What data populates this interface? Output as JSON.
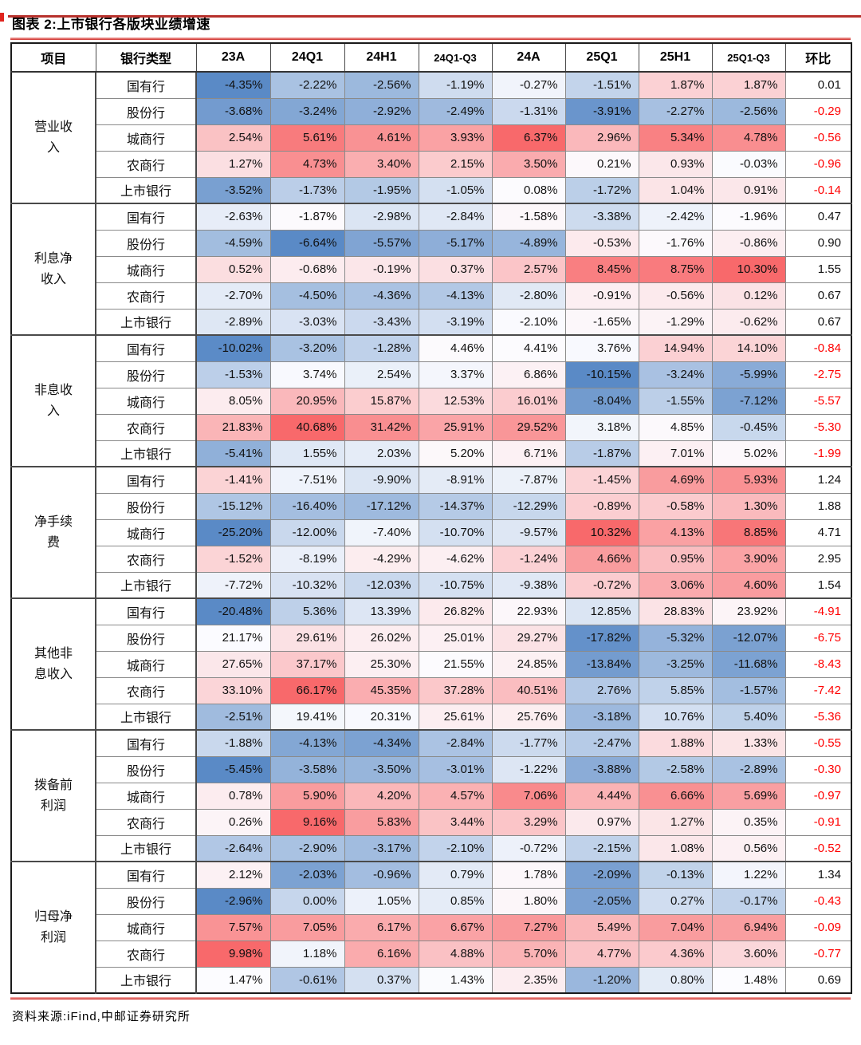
{
  "page": {
    "title": "图表 2:上市银行各版块业绩增速",
    "source": "资料来源:iFind,中邮证券研究所"
  },
  "colors": {
    "scale_min": "#5A8AC6",
    "scale_mid": "#FCFCFF",
    "scale_max": "#F8696B",
    "negative_text": "#FF0000",
    "rule_red": "#CF2E2A"
  },
  "table": {
    "columns": [
      "项目",
      "银行类型",
      "23A",
      "24Q1",
      "24H1",
      "24Q1-Q3",
      "24A",
      "25Q1",
      "25H1",
      "25Q1-Q3",
      "环比"
    ],
    "blocks": [
      {
        "item": "营业收入",
        "rows": [
          {
            "bank": "国有行",
            "values": [
              "-4.35%",
              "-2.22%",
              "-2.56%",
              "-1.19%",
              "-0.27%",
              "-1.51%",
              "1.87%",
              "1.87%"
            ],
            "qoq": "0.01"
          },
          {
            "bank": "股份行",
            "values": [
              "-3.68%",
              "-3.24%",
              "-2.92%",
              "-2.49%",
              "-1.31%",
              "-3.91%",
              "-2.27%",
              "-2.56%"
            ],
            "qoq": "-0.29"
          },
          {
            "bank": "城商行",
            "values": [
              "2.54%",
              "5.61%",
              "4.61%",
              "3.93%",
              "6.37%",
              "2.96%",
              "5.34%",
              "4.78%"
            ],
            "qoq": "-0.56"
          },
          {
            "bank": "农商行",
            "values": [
              "1.27%",
              "4.73%",
              "3.40%",
              "2.15%",
              "3.50%",
              "0.21%",
              "0.93%",
              "-0.03%"
            ],
            "qoq": "-0.96"
          },
          {
            "bank": "上市银行",
            "values": [
              "-3.52%",
              "-1.73%",
              "-1.95%",
              "-1.05%",
              "0.08%",
              "-1.72%",
              "1.04%",
              "0.91%"
            ],
            "qoq": "-0.14"
          }
        ]
      },
      {
        "item": "利息净收入",
        "rows": [
          {
            "bank": "国有行",
            "values": [
              "-2.63%",
              "-1.87%",
              "-2.98%",
              "-2.84%",
              "-1.58%",
              "-3.38%",
              "-2.42%",
              "-1.96%"
            ],
            "qoq": "0.47"
          },
          {
            "bank": "股份行",
            "values": [
              "-4.59%",
              "-6.64%",
              "-5.57%",
              "-5.17%",
              "-4.89%",
              "-0.53%",
              "-1.76%",
              "-0.86%"
            ],
            "qoq": "0.90"
          },
          {
            "bank": "城商行",
            "values": [
              "0.52%",
              "-0.68%",
              "-0.19%",
              "0.37%",
              "2.57%",
              "8.45%",
              "8.75%",
              "10.30%"
            ],
            "qoq": "1.55"
          },
          {
            "bank": "农商行",
            "values": [
              "-2.70%",
              "-4.50%",
              "-4.36%",
              "-4.13%",
              "-2.80%",
              "-0.91%",
              "-0.56%",
              "0.12%"
            ],
            "qoq": "0.67"
          },
          {
            "bank": "上市银行",
            "values": [
              "-2.89%",
              "-3.03%",
              "-3.43%",
              "-3.19%",
              "-2.10%",
              "-1.65%",
              "-1.29%",
              "-0.62%"
            ],
            "qoq": "0.67"
          }
        ]
      },
      {
        "item": "非息收入",
        "rows": [
          {
            "bank": "国有行",
            "values": [
              "-10.02%",
              "-3.20%",
              "-1.28%",
              "4.46%",
              "4.41%",
              "3.76%",
              "14.94%",
              "14.10%"
            ],
            "qoq": "-0.84"
          },
          {
            "bank": "股份行",
            "values": [
              "-1.53%",
              "3.74%",
              "2.54%",
              "3.37%",
              "6.86%",
              "-10.15%",
              "-3.24%",
              "-5.99%"
            ],
            "qoq": "-2.75"
          },
          {
            "bank": "城商行",
            "values": [
              "8.05%",
              "20.95%",
              "15.87%",
              "12.53%",
              "16.01%",
              "-8.04%",
              "-1.55%",
              "-7.12%"
            ],
            "qoq": "-5.57"
          },
          {
            "bank": "农商行",
            "values": [
              "21.83%",
              "40.68%",
              "31.42%",
              "25.91%",
              "29.52%",
              "3.18%",
              "4.85%",
              "-0.45%"
            ],
            "qoq": "-5.30"
          },
          {
            "bank": "上市银行",
            "values": [
              "-5.41%",
              "1.55%",
              "2.03%",
              "5.20%",
              "6.71%",
              "-1.87%",
              "7.01%",
              "5.02%"
            ],
            "qoq": "-1.99"
          }
        ]
      },
      {
        "item": "净手续费",
        "rows": [
          {
            "bank": "国有行",
            "values": [
              "-1.41%",
              "-7.51%",
              "-9.90%",
              "-8.91%",
              "-7.87%",
              "-1.45%",
              "4.69%",
              "5.93%"
            ],
            "qoq": "1.24"
          },
          {
            "bank": "股份行",
            "values": [
              "-15.12%",
              "-16.40%",
              "-17.12%",
              "-14.37%",
              "-12.29%",
              "-0.89%",
              "-0.58%",
              "1.30%"
            ],
            "qoq": "1.88"
          },
          {
            "bank": "城商行",
            "values": [
              "-25.20%",
              "-12.00%",
              "-7.40%",
              "-10.70%",
              "-9.57%",
              "10.32%",
              "4.13%",
              "8.85%"
            ],
            "qoq": "4.71"
          },
          {
            "bank": "农商行",
            "values": [
              "-1.52%",
              "-8.19%",
              "-4.29%",
              "-4.62%",
              "-1.24%",
              "4.66%",
              "0.95%",
              "3.90%"
            ],
            "qoq": "2.95"
          },
          {
            "bank": "上市银行",
            "values": [
              "-7.72%",
              "-10.32%",
              "-12.03%",
              "-10.75%",
              "-9.38%",
              "-0.72%",
              "3.06%",
              "4.60%"
            ],
            "qoq": "1.54"
          }
        ]
      },
      {
        "item": "其他非息收入",
        "rows": [
          {
            "bank": "国有行",
            "values": [
              "-20.48%",
              "5.36%",
              "13.39%",
              "26.82%",
              "22.93%",
              "12.85%",
              "28.83%",
              "23.92%"
            ],
            "qoq": "-4.91"
          },
          {
            "bank": "股份行",
            "values": [
              "21.17%",
              "29.61%",
              "26.02%",
              "25.01%",
              "29.27%",
              "-17.82%",
              "-5.32%",
              "-12.07%"
            ],
            "qoq": "-6.75"
          },
          {
            "bank": "城商行",
            "values": [
              "27.65%",
              "37.17%",
              "25.30%",
              "21.55%",
              "24.85%",
              "-13.84%",
              "-3.25%",
              "-11.68%"
            ],
            "qoq": "-8.43"
          },
          {
            "bank": "农商行",
            "values": [
              "33.10%",
              "66.17%",
              "45.35%",
              "37.28%",
              "40.51%",
              "2.76%",
              "5.85%",
              "-1.57%"
            ],
            "qoq": "-7.42"
          },
          {
            "bank": "上市银行",
            "values": [
              "-2.51%",
              "19.41%",
              "20.31%",
              "25.61%",
              "25.76%",
              "-3.18%",
              "10.76%",
              "5.40%"
            ],
            "qoq": "-5.36"
          }
        ]
      },
      {
        "item": "拨备前利润",
        "rows": [
          {
            "bank": "国有行",
            "values": [
              "-1.88%",
              "-4.13%",
              "-4.34%",
              "-2.84%",
              "-1.77%",
              "-2.47%",
              "1.88%",
              "1.33%"
            ],
            "qoq": "-0.55"
          },
          {
            "bank": "股份行",
            "values": [
              "-5.45%",
              "-3.58%",
              "-3.50%",
              "-3.01%",
              "-1.22%",
              "-3.88%",
              "-2.58%",
              "-2.89%"
            ],
            "qoq": "-0.30"
          },
          {
            "bank": "城商行",
            "values": [
              "0.78%",
              "5.90%",
              "4.20%",
              "4.57%",
              "7.06%",
              "4.44%",
              "6.66%",
              "5.69%"
            ],
            "qoq": "-0.97"
          },
          {
            "bank": "农商行",
            "values": [
              "0.26%",
              "9.16%",
              "5.83%",
              "3.44%",
              "3.29%",
              "0.97%",
              "1.27%",
              "0.35%"
            ],
            "qoq": "-0.91"
          },
          {
            "bank": "上市银行",
            "values": [
              "-2.64%",
              "-2.90%",
              "-3.17%",
              "-2.10%",
              "-0.72%",
              "-2.15%",
              "1.08%",
              "0.56%"
            ],
            "qoq": "-0.52"
          }
        ]
      },
      {
        "item": "归母净利润",
        "rows": [
          {
            "bank": "国有行",
            "values": [
              "2.12%",
              "-2.03%",
              "-0.96%",
              "0.79%",
              "1.78%",
              "-2.09%",
              "-0.13%",
              "1.22%"
            ],
            "qoq": "1.34"
          },
          {
            "bank": "股份行",
            "values": [
              "-2.96%",
              "0.00%",
              "1.05%",
              "0.85%",
              "1.80%",
              "-2.05%",
              "0.27%",
              "-0.17%"
            ],
            "qoq": "-0.43"
          },
          {
            "bank": "城商行",
            "values": [
              "7.57%",
              "7.05%",
              "6.17%",
              "6.67%",
              "7.27%",
              "5.49%",
              "7.04%",
              "6.94%"
            ],
            "qoq": "-0.09"
          },
          {
            "bank": "农商行",
            "values": [
              "9.98%",
              "1.18%",
              "6.16%",
              "4.88%",
              "5.70%",
              "4.77%",
              "4.36%",
              "3.60%"
            ],
            "qoq": "-0.77"
          },
          {
            "bank": "上市银行",
            "values": [
              "1.47%",
              "-0.61%",
              "0.37%",
              "1.43%",
              "2.35%",
              "-1.20%",
              "0.80%",
              "1.48%"
            ],
            "qoq": "0.69"
          }
        ]
      }
    ]
  }
}
